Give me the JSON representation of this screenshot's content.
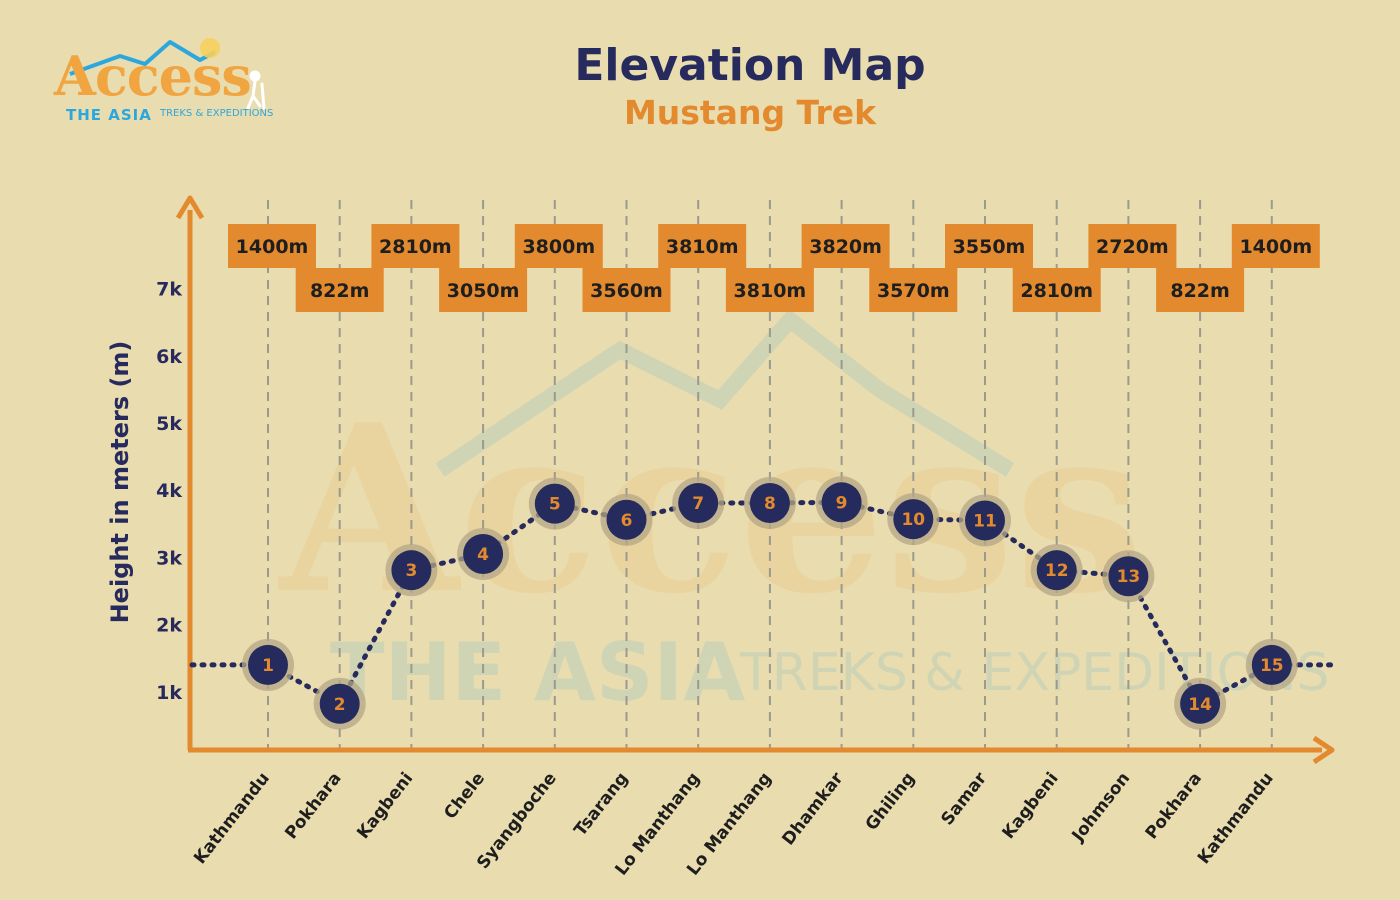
{
  "title": "Elevation Map",
  "subtitle": "Mustang Trek",
  "logo": {
    "word": "Access",
    "line1": "THE ASIA",
    "line2": "TREKS & EXPEDITIONS"
  },
  "colors": {
    "background": "#e9dcaf",
    "axis": "#e38a2f",
    "navy": "#262a5c",
    "label_box": "#e38a2f",
    "marker": "#252b5c"
  },
  "chart_data": {
    "type": "line",
    "title": "Elevation Map",
    "subtitle": "Mustang Trek",
    "ylabel": "Height in meters (m)",
    "xlabel": "",
    "yticks": [
      "1k",
      "2k",
      "3k",
      "4k",
      "5k",
      "6k",
      "7k"
    ],
    "ytick_values": [
      1000,
      2000,
      3000,
      4000,
      5000,
      6000,
      7000
    ],
    "categories": [
      "Kathmandu",
      "Pokhara",
      "Kagbeni",
      "Chele",
      "Syangboche",
      "Tsarang",
      "Lo Manthang",
      "Lo Manthang",
      "Dhamkar",
      "Ghiling",
      "Samar",
      "Kagbeni",
      "Johmson",
      "Pokhara",
      "Kathmandu"
    ],
    "stops": [
      "1",
      "2",
      "3",
      "4",
      "5",
      "6",
      "7",
      "8",
      "9",
      "10",
      "11",
      "12",
      "13",
      "14",
      "15"
    ],
    "labels": [
      "1400m",
      "822m",
      "2810m",
      "3050m",
      "3800m",
      "3560m",
      "3810m",
      "3810m",
      "3820m",
      "3570m",
      "3550m",
      "2810m",
      "2720m",
      "822m",
      "1400m"
    ],
    "values": [
      1400,
      822,
      2810,
      3050,
      3800,
      3560,
      3810,
      3810,
      3820,
      3570,
      3550,
      2810,
      2720,
      822,
      1400
    ],
    "ylim": [
      0,
      7500
    ],
    "grid": true,
    "legend": "none"
  }
}
